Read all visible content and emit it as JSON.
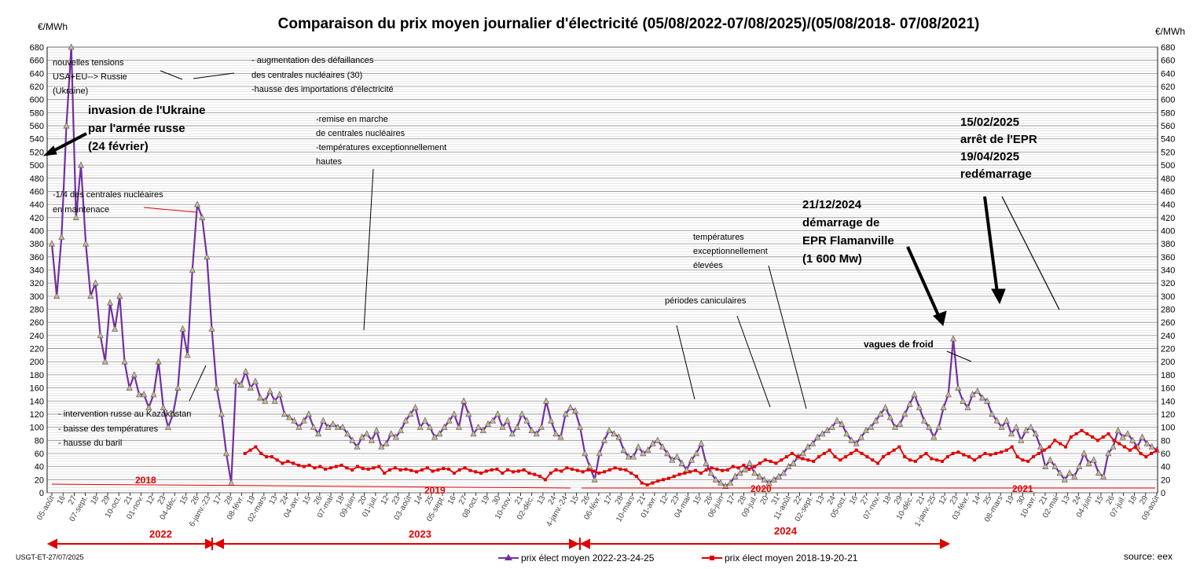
{
  "chart_data": {
    "type": "line",
    "title": "Comparaison du prix moyen journalier d'électricité (05/08/2022-07/08/2025)/(05/08/2018-  07/08/2021)",
    "ylabel_left": "€/MWh",
    "ylabel_right": "€/MWh",
    "ylim": [
      0,
      680
    ],
    "ytick_step": 20,
    "yticks": [
      "0",
      "20",
      "40",
      "60",
      "80",
      "100",
      "120",
      "140",
      "160",
      "180",
      "200",
      "220",
      "240",
      "260",
      "280",
      "300",
      "320",
      "340",
      "360",
      "380",
      "400",
      "420",
      "440",
      "460",
      "480",
      "500",
      "520",
      "540",
      "560",
      "580",
      "600",
      "620",
      "640",
      "660",
      "680"
    ],
    "grid": true,
    "legend_position": "bottom-center",
    "date_ticks": [
      "05-août",
      "16",
      "27",
      "07-sept.",
      "18",
      "29",
      "10-oct.",
      "21",
      "01-nov.",
      "12",
      "23",
      "04-déc.",
      "15",
      "26",
      "6-janv.-23",
      "17",
      "28",
      "08-févr.",
      "19",
      "02-mars",
      "13",
      "24",
      "04-avr.",
      "15",
      "26",
      "07-mai",
      "18",
      "09-juin",
      "20",
      "01-juil.",
      "12",
      "23",
      "03-août",
      "14",
      "25",
      "05-sept.",
      "16",
      "27",
      "08-oct.",
      "19",
      "30",
      "10-nov.",
      "21",
      "02-déc.",
      "13",
      "24",
      "4-janv.-24",
      "15",
      "26",
      "06-févr.",
      "17",
      "28",
      "10-mars",
      "21",
      "01-avr.",
      "12",
      "23",
      "04-mai",
      "15",
      "26",
      "06-juin",
      "17",
      "28",
      "09-juil.",
      "20",
      "31",
      "11-août",
      "22",
      "02-sept.",
      "13",
      "24",
      "05-oct.",
      "16",
      "27",
      "07-nov.",
      "18",
      "29",
      "10-déc.",
      "21",
      "1-janv.-25",
      "12",
      "23",
      "03-févr.",
      "14",
      "25",
      "08-mars",
      "19",
      "30",
      "10-avr.",
      "21",
      "02-mai",
      "13",
      "24",
      "04-juin",
      "15",
      "26",
      "07-juil.",
      "18",
      "29",
      "09-août"
    ],
    "series": [
      {
        "name": "prix élect moyen 2022-23-24-25",
        "color": "#7030a0",
        "marker": "triangle",
        "x_start": "2022-08-05",
        "step_days": 4,
        "values": [
          380,
          300,
          390,
          560,
          680,
          420,
          500,
          380,
          300,
          320,
          240,
          200,
          290,
          250,
          300,
          200,
          160,
          180,
          150,
          150,
          130,
          150,
          200,
          130,
          100,
          120,
          160,
          250,
          210,
          340,
          440,
          420,
          360,
          250,
          160,
          120,
          60,
          15,
          170,
          165,
          185,
          160,
          170,
          145,
          140,
          155,
          140,
          150,
          120,
          115,
          110,
          100,
          110,
          120,
          100,
          90,
          110,
          100,
          105,
          100,
          100,
          90,
          80,
          70,
          85,
          90,
          80,
          95,
          70,
          75,
          90,
          85,
          95,
          110,
          120,
          130,
          100,
          110,
          100,
          85,
          90,
          100,
          110,
          120,
          100,
          140,
          120,
          90,
          100,
          95,
          105,
          110,
          120,
          100,
          110,
          90,
          100,
          120,
          110,
          95,
          90,
          100,
          140,
          110,
          90,
          85,
          120,
          130,
          125,
          100,
          60,
          40,
          20,
          60,
          80,
          95,
          90,
          85,
          65,
          55,
          55,
          70,
          60,
          65,
          75,
          80,
          70,
          60,
          50,
          55,
          45,
          35,
          50,
          60,
          75,
          45,
          30,
          20,
          15,
          10,
          15,
          25,
          30,
          35,
          45,
          30,
          25,
          20,
          15,
          20,
          25,
          30,
          40,
          45,
          55,
          60,
          70,
          75,
          85,
          90,
          95,
          100,
          110,
          105,
          90,
          80,
          75,
          85,
          95,
          100,
          110,
          120,
          130,
          115,
          100,
          105,
          120,
          135,
          150,
          130,
          110,
          100,
          85,
          100,
          130,
          150,
          235,
          160,
          140,
          130,
          150,
          155,
          145,
          140,
          120,
          110,
          100,
          110,
          90,
          100,
          80,
          95,
          100,
          90,
          70,
          40,
          50,
          40,
          30,
          20,
          30,
          25,
          40,
          60,
          45,
          50,
          30,
          25,
          60,
          70,
          95,
          85,
          90,
          80,
          70,
          85,
          75,
          70,
          65
        ]
      },
      {
        "name": "prix élect moyen 2018-19-20-21",
        "color": "#e00000",
        "marker": "square",
        "x_start": "2018-08-05",
        "step_days": 4,
        "values": [
          null,
          null,
          null,
          null,
          null,
          null,
          null,
          null,
          null,
          null,
          null,
          null,
          null,
          null,
          null,
          null,
          null,
          null,
          null,
          null,
          null,
          null,
          null,
          null,
          null,
          null,
          null,
          null,
          null,
          null,
          null,
          null,
          null,
          null,
          null,
          null,
          60,
          65,
          70,
          60,
          55,
          55,
          50,
          45,
          48,
          45,
          42,
          40,
          42,
          38,
          40,
          36,
          38,
          40,
          42,
          38,
          35,
          40,
          37,
          36,
          38,
          40,
          30,
          35,
          38,
          35,
          36,
          34,
          32,
          35,
          38,
          33,
          35,
          37,
          36,
          30,
          35,
          38,
          34,
          32,
          30,
          33,
          35,
          36,
          30,
          35,
          32,
          33,
          35,
          30,
          28,
          25,
          20,
          30,
          35,
          33,
          38,
          36,
          34,
          32,
          35,
          33,
          30,
          32,
          35,
          38,
          36,
          35,
          30,
          25,
          15,
          12,
          15,
          18,
          20,
          22,
          25,
          28,
          30,
          32,
          34,
          30,
          35,
          38,
          36,
          34,
          35,
          40,
          38,
          42,
          36,
          40,
          45,
          50,
          48,
          45,
          50,
          55,
          60,
          55,
          52,
          50,
          48,
          55,
          60,
          65,
          55,
          50,
          55,
          60,
          65,
          60,
          55,
          50,
          45,
          55,
          60,
          65,
          70,
          55,
          50,
          48,
          55,
          60,
          52,
          50,
          48,
          55,
          60,
          62,
          58,
          55,
          50,
          55,
          60,
          58,
          60,
          62,
          65,
          70,
          55,
          50,
          48,
          55,
          60,
          65,
          70,
          80,
          75,
          70,
          85,
          90,
          95,
          90,
          85,
          80,
          85,
          90,
          80,
          75,
          70,
          65,
          70,
          60,
          55,
          60,
          65
        ]
      }
    ],
    "annotations": [
      "nouvelles tensions",
      "USA+EU--> Russie",
      "(Ukraine)",
      "invasion de l'Ukraine",
      "par l'armée russe",
      "(24 février)",
      "- augmentation des défaillances",
      "des centrales nucléaires (30)",
      "-hausse des importations d'électricité",
      "-remise en marche",
      "de centrales nucléaires",
      "-températures exceptionnellement",
      "hautes",
      "-1/4 des centrales nucléaires",
      "en maintenace",
      "- intervention russe au Kazakhstan",
      "- baisse des températures",
      "- hausse du baril",
      "15/02/2025",
      "arrêt de l'EPR",
      "19/04/2025",
      "redémarrage",
      "21/12/2024",
      "démarrage de",
      "EPR Flamanville",
      "(1 600 Mw)",
      "températures",
      "exceptionnellement",
      "élevées",
      "périodes caniculaires",
      "vagues de froid"
    ],
    "year_labels_red": [
      "2018",
      "2019",
      "2020",
      "2021"
    ],
    "year_labels_bottom": [
      "2022",
      "2023",
      "2024"
    ]
  },
  "footer": {
    "left_note": "USGT-ET-27/07/2025",
    "source": "source: eex"
  }
}
